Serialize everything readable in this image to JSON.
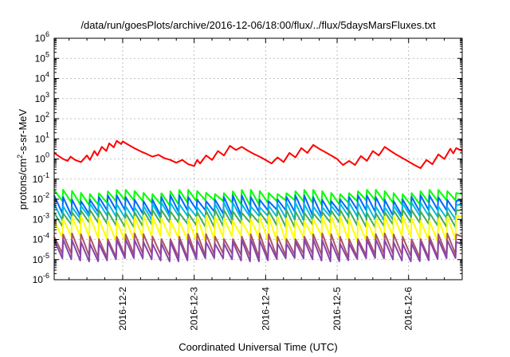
{
  "chart_data": {
    "type": "line",
    "title": "/data/run/goesPlots/archive/2016-12-06/18:00/flux/../flux/5daysMarsFluxes.txt",
    "xlabel": "Coordinated Universal Time (UTC)",
    "ylabel_main": "protons/cm",
    "ylabel_sup": "2",
    "ylabel_rest": "-s-sr-MeV",
    "y_scale": "log",
    "ylim": [
      1e-06,
      1000000.0
    ],
    "xlim": [
      "2016-12-01 01:00",
      "2016-12-06 18:00"
    ],
    "grid": true,
    "y_ticks": [
      {
        "base": "10",
        "exp": "-6"
      },
      {
        "base": "10",
        "exp": "-5"
      },
      {
        "base": "10",
        "exp": "-4"
      },
      {
        "base": "10",
        "exp": "-3"
      },
      {
        "base": "10",
        "exp": "-2"
      },
      {
        "base": "10",
        "exp": "-1"
      },
      {
        "base": "10",
        "exp": "0"
      },
      {
        "base": "10",
        "exp": "1"
      },
      {
        "base": "10",
        "exp": "2"
      },
      {
        "base": "10",
        "exp": "3"
      },
      {
        "base": "10",
        "exp": "4"
      },
      {
        "base": "10",
        "exp": "5"
      },
      {
        "base": "10",
        "exp": "6"
      }
    ],
    "x_ticks": [
      "2016-12-2",
      "2016-12-3",
      "2016-12-4",
      "2016-12-5",
      "2016-12-6"
    ],
    "series": [
      {
        "color": "#ff0000",
        "x": [
          "2016-12-01 01:00",
          "2016-12-01 02:30",
          "2016-12-01 04:00",
          "2016-12-01 05:30",
          "2016-12-01 06:30",
          "2016-12-01 08:00",
          "2016-12-01 10:00",
          "2016-12-01 12:00",
          "2016-12-01 13:00",
          "2016-12-01 14:30",
          "2016-12-01 15:30",
          "2016-12-01 17:00",
          "2016-12-01 18:30",
          "2016-12-01 19:30",
          "2016-12-01 21:00",
          "2016-12-01 22:00",
          "2016-12-01 23:30",
          "2016-12-02 00:00",
          "2016-12-02 02:00",
          "2016-12-02 04:00",
          "2016-12-02 06:00",
          "2016-12-02 08:00",
          "2016-12-02 10:00",
          "2016-12-02 12:00",
          "2016-12-02 14:00",
          "2016-12-02 16:00",
          "2016-12-02 18:00",
          "2016-12-02 20:00",
          "2016-12-02 22:00",
          "2016-12-03 00:00",
          "2016-12-03 01:00",
          "2016-12-03 02:00",
          "2016-12-03 04:00",
          "2016-12-03 06:00",
          "2016-12-03 08:00",
          "2016-12-03 10:00",
          "2016-12-03 12:00",
          "2016-12-03 14:00",
          "2016-12-03 16:00",
          "2016-12-03 18:00",
          "2016-12-03 20:00",
          "2016-12-03 22:00",
          "2016-12-04 00:00",
          "2016-12-04 02:00",
          "2016-12-04 04:00",
          "2016-12-04 06:00",
          "2016-12-04 08:00",
          "2016-12-04 10:00",
          "2016-12-04 12:00",
          "2016-12-04 14:00",
          "2016-12-04 16:00",
          "2016-12-04 18:00",
          "2016-12-04 20:00",
          "2016-12-04 22:00",
          "2016-12-05 00:00",
          "2016-12-05 01:00",
          "2016-12-05 02:00",
          "2016-12-05 04:00",
          "2016-12-05 06:00",
          "2016-12-05 08:00",
          "2016-12-05 10:00",
          "2016-12-05 12:00",
          "2016-12-05 14:00",
          "2016-12-05 16:00",
          "2016-12-05 18:00",
          "2016-12-05 20:00",
          "2016-12-05 22:00",
          "2016-12-06 00:00",
          "2016-12-06 02:00",
          "2016-12-06 04:00",
          "2016-12-06 06:00",
          "2016-12-06 08:00",
          "2016-12-06 10:00",
          "2016-12-06 12:00",
          "2016-12-06 14:00",
          "2016-12-06 15:00",
          "2016-12-06 16:00",
          "2016-12-06 18:00"
        ],
        "y": [
          2.0,
          1.4,
          1.0,
          0.8,
          1.3,
          0.9,
          0.7,
          1.5,
          0.9,
          2.5,
          1.5,
          4.0,
          2.5,
          6.0,
          3.8,
          8.0,
          5.5,
          7.5,
          5.0,
          3.4,
          2.4,
          1.8,
          1.3,
          1.6,
          1.1,
          0.9,
          0.65,
          0.9,
          0.55,
          0.45,
          0.9,
          0.6,
          1.5,
          0.9,
          2.5,
          1.5,
          4.5,
          2.8,
          4.0,
          2.6,
          1.8,
          1.3,
          0.9,
          0.6,
          1.2,
          0.7,
          2.0,
          1.2,
          3.5,
          2.0,
          5.0,
          3.2,
          2.2,
          1.5,
          1.0,
          0.7,
          0.5,
          0.8,
          0.5,
          1.4,
          0.8,
          2.5,
          1.5,
          4.0,
          2.5,
          1.6,
          1.1,
          0.75,
          0.5,
          0.35,
          0.9,
          0.55,
          1.7,
          1.0,
          3.2,
          1.9,
          3.5,
          2.5
        ]
      },
      {
        "color": "#00ff00",
        "cycle_hours": 3,
        "max": [
          0.018,
          0.03
        ],
        "min": [
          0.005,
          0.009
        ]
      },
      {
        "color": "#0066ff",
        "cycle_hours": 3,
        "max": [
          0.008,
          0.016
        ],
        "min": [
          0.0015,
          0.003
        ]
      },
      {
        "color": "#00bbdd",
        "cycle_hours": 3,
        "max": [
          0.004,
          0.007
        ],
        "min": [
          0.0009,
          0.0015
        ]
      },
      {
        "color": "#44aa55",
        "cycle_hours": 3,
        "max": [
          0.002,
          0.003
        ],
        "min": [
          0.0004,
          0.0007
        ]
      },
      {
        "color": "#ffff00",
        "cycle_hours": 3,
        "max": [
          0.0008,
          0.0015
        ],
        "min": [
          8e-05,
          0.00015
        ]
      },
      {
        "color": "#aa5566",
        "cycle_hours": 3,
        "max": [
          0.0001,
          0.0002
        ],
        "min": [
          1.2e-05,
          2e-05
        ]
      },
      {
        "color": "#8844aa",
        "cycle_hours": 3,
        "max": [
          6e-05,
          0.0001
        ],
        "min": [
          8e-06,
          1.2e-05
        ]
      }
    ]
  }
}
